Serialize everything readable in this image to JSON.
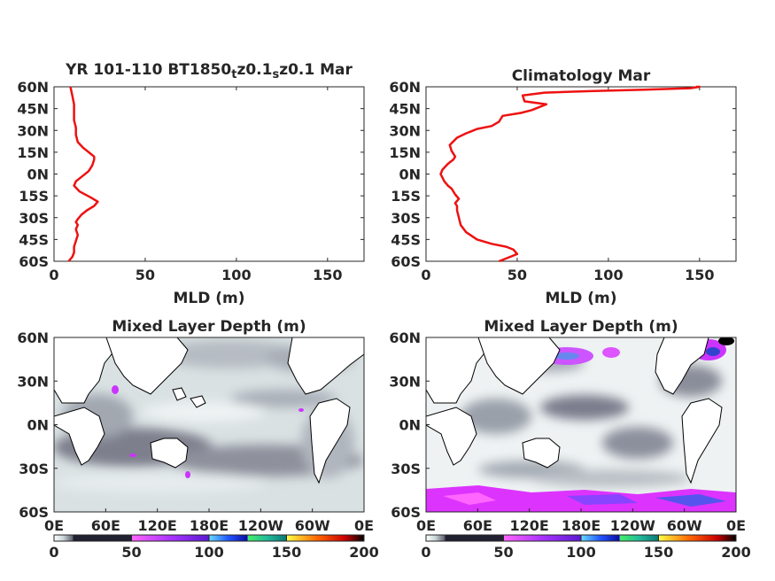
{
  "chart_data": [
    {
      "type": "line",
      "title_main": "YR 101-110 BT1850",
      "title_parts": [
        {
          "text": "YR 101-110 BT1850",
          "sub": false
        },
        {
          "text": "t",
          "sub": true
        },
        {
          "text": "z0.1",
          "sub": false
        },
        {
          "text": "s",
          "sub": true
        },
        {
          "text": "z0.1 Mar",
          "sub": false
        }
      ],
      "xlabel": "MLD (m)",
      "xlim": [
        0,
        170
      ],
      "ylim": [
        -60,
        60
      ],
      "xticks": [
        "0",
        "50",
        "100",
        "150"
      ],
      "yticks": [
        "60N",
        "45N",
        "30N",
        "15N",
        "0N",
        "15S",
        "30S",
        "45S",
        "60S"
      ],
      "series": [
        {
          "color": "#ee1111",
          "x": [
            8,
            10,
            11,
            11,
            12,
            13,
            12,
            13,
            12,
            13,
            15,
            18,
            22,
            24,
            20,
            14,
            11,
            12,
            15,
            19,
            21,
            22,
            22,
            20,
            18,
            16,
            13,
            12,
            12,
            11,
            11,
            11,
            10,
            9
          ],
          "y": [
            -60,
            -57,
            -54,
            -50,
            -46,
            -42,
            -38,
            -35,
            -33,
            -31,
            -28,
            -25,
            -22,
            -19,
            -16,
            -12,
            -8,
            -5,
            -2,
            2,
            6,
            10,
            12,
            14,
            16,
            18,
            22,
            27,
            32,
            37,
            42,
            48,
            54,
            60
          ]
        }
      ]
    },
    {
      "type": "line",
      "title": "Climatology Mar",
      "xlabel": "MLD (m)",
      "xlim": [
        0,
        170
      ],
      "ylim": [
        -60,
        60
      ],
      "xticks": [
        "0",
        "50",
        "100",
        "150"
      ],
      "yticks": [
        "60N",
        "45N",
        "30N",
        "15N",
        "0N",
        "15S",
        "30S",
        "45S",
        "60S"
      ],
      "series": [
        {
          "color": "#ee1111",
          "x": [
            40,
            46,
            50,
            48,
            44,
            36,
            28,
            22,
            19,
            18,
            17,
            17,
            16,
            18,
            16,
            14,
            12,
            10,
            8,
            9,
            12,
            15,
            16,
            14,
            13,
            17,
            22,
            24,
            28,
            36,
            40,
            42,
            52,
            58,
            66,
            54,
            53,
            65,
            90,
            120,
            145,
            150,
            148
          ],
          "y": [
            -60,
            -57,
            -55,
            -52,
            -50,
            -48,
            -45,
            -40,
            -35,
            -30,
            -25,
            -22,
            -20,
            -17,
            -14,
            -10,
            -8,
            -5,
            0,
            3,
            7,
            10,
            12,
            16,
            20,
            25,
            28,
            29,
            31,
            33,
            36,
            40,
            42,
            44,
            48,
            50,
            54,
            56,
            57,
            58,
            59,
            60,
            60
          ]
        }
      ]
    },
    {
      "type": "heatmap",
      "title": "Mixed Layer Depth (m)",
      "xticks": [
        "0E",
        "60E",
        "120E",
        "180E",
        "120W",
        "60W",
        "0E"
      ],
      "yticks": [
        "60N",
        "30N",
        "0N",
        "30S",
        "60S"
      ],
      "xlim": [
        0,
        360
      ],
      "ylim": [
        -60,
        60
      ],
      "colorbar": {
        "ticks": [
          "0",
          "50",
          "100",
          "150",
          "200"
        ],
        "range": [
          0,
          200
        ]
      }
    },
    {
      "type": "heatmap",
      "title": "Mixed Layer Depth (m)",
      "xticks": [
        "0E",
        "60E",
        "120E",
        "180E",
        "120W",
        "60W",
        "0E"
      ],
      "yticks": [
        "60N",
        "30N",
        "0N",
        "30S",
        "60S"
      ],
      "xlim": [
        0,
        360
      ],
      "ylim": [
        -60,
        60
      ],
      "colorbar": {
        "ticks": [
          "0",
          "50",
          "100",
          "150",
          "200"
        ],
        "range": [
          0,
          200
        ]
      }
    }
  ],
  "colors": {
    "profile": "#ee1111",
    "map_low": "#ffffff",
    "map_mid": "#3c3c4c",
    "colorbar_segments": [
      "#e8eef0",
      "#cc33ff",
      "#4444ee",
      "#22ccaa",
      "#ff4400"
    ]
  }
}
